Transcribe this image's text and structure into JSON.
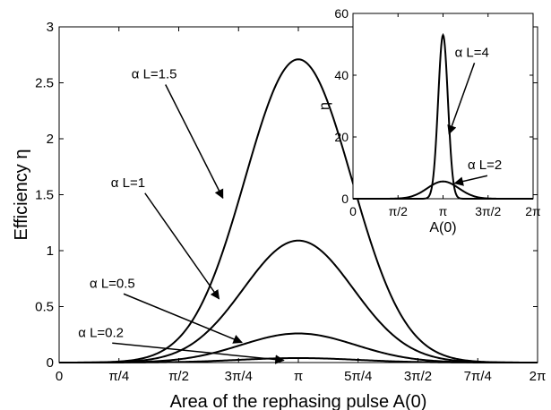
{
  "chart_data": [
    {
      "type": "line",
      "xlabel": "Area of the rephasing pulse A(0)",
      "ylabel": "Efficiency η",
      "xlim": [
        0,
        6.2832
      ],
      "ylim": [
        0,
        3
      ],
      "xticks": [
        {
          "value": 0,
          "label": "0"
        },
        {
          "value": 0.7854,
          "label": "π/4"
        },
        {
          "value": 1.5708,
          "label": "π/2"
        },
        {
          "value": 2.3562,
          "label": "3π/4"
        },
        {
          "value": 3.1416,
          "label": "π"
        },
        {
          "value": 3.927,
          "label": "5π/4"
        },
        {
          "value": 4.7124,
          "label": "3π/2"
        },
        {
          "value": 5.4978,
          "label": "7π/4"
        },
        {
          "value": 6.2832,
          "label": "2π"
        }
      ],
      "yticks": [
        {
          "value": 0,
          "label": "0"
        },
        {
          "value": 0.5,
          "label": "0.5"
        },
        {
          "value": 1,
          "label": "1"
        },
        {
          "value": 1.5,
          "label": "1.5"
        },
        {
          "value": 2,
          "label": "2"
        },
        {
          "value": 2.5,
          "label": "2.5"
        },
        {
          "value": 3,
          "label": "3"
        }
      ],
      "grid": false,
      "series": [
        {
          "name": "α L=0.2",
          "peak": 0.04,
          "width": 0.78
        },
        {
          "name": "α L=0.5",
          "peak": 0.26,
          "width": 0.75
        },
        {
          "name": "α L=1",
          "peak": 1.09,
          "width": 0.72
        },
        {
          "name": "α L=1.5",
          "peak": 2.71,
          "width": 0.7
        }
      ],
      "annotations": [
        {
          "text": "α L=1.5",
          "text_x": 0.95,
          "text_y": 2.54,
          "arrow_x": 2.15,
          "arrow_y": 1.47
        },
        {
          "text": "α L=1",
          "text_x": 0.68,
          "text_y": 1.57,
          "arrow_x": 2.1,
          "arrow_y": 0.57
        },
        {
          "text": "α L=0.5",
          "text_x": 0.4,
          "text_y": 0.67,
          "arrow_x": 2.4,
          "arrow_y": 0.18
        },
        {
          "text": "α L=0.2",
          "text_x": 0.25,
          "text_y": 0.23,
          "arrow_x": 2.95,
          "arrow_y": 0.02
        }
      ]
    },
    {
      "type": "line",
      "xlabel": "A(0)",
      "ylabel": "η",
      "xlim": [
        0,
        6.2832
      ],
      "ylim": [
        0,
        60
      ],
      "xticks": [
        {
          "value": 0,
          "label": "0"
        },
        {
          "value": 1.5708,
          "label": "π/2"
        },
        {
          "value": 3.1416,
          "label": "π"
        },
        {
          "value": 4.7124,
          "label": "3π/2"
        },
        {
          "value": 6.2832,
          "label": "2π"
        }
      ],
      "yticks": [
        {
          "value": 0,
          "label": "0"
        },
        {
          "value": 20,
          "label": "20"
        },
        {
          "value": 40,
          "label": "40"
        },
        {
          "value": 60,
          "label": "60"
        }
      ],
      "grid": false,
      "series": [
        {
          "name": "α L=4",
          "peak": 53,
          "width": 0.17
        },
        {
          "name": "α L=2",
          "peak": 5.6,
          "width": 0.55
        }
      ],
      "annotations": [
        {
          "text": "α L=4",
          "text_x": 3.55,
          "text_y": 46,
          "arrow_x": 3.35,
          "arrow_y": 21
        },
        {
          "text": "α L=2",
          "text_x": 4.0,
          "text_y": 9.5,
          "arrow_x": 3.55,
          "arrow_y": 5.0
        }
      ]
    }
  ]
}
